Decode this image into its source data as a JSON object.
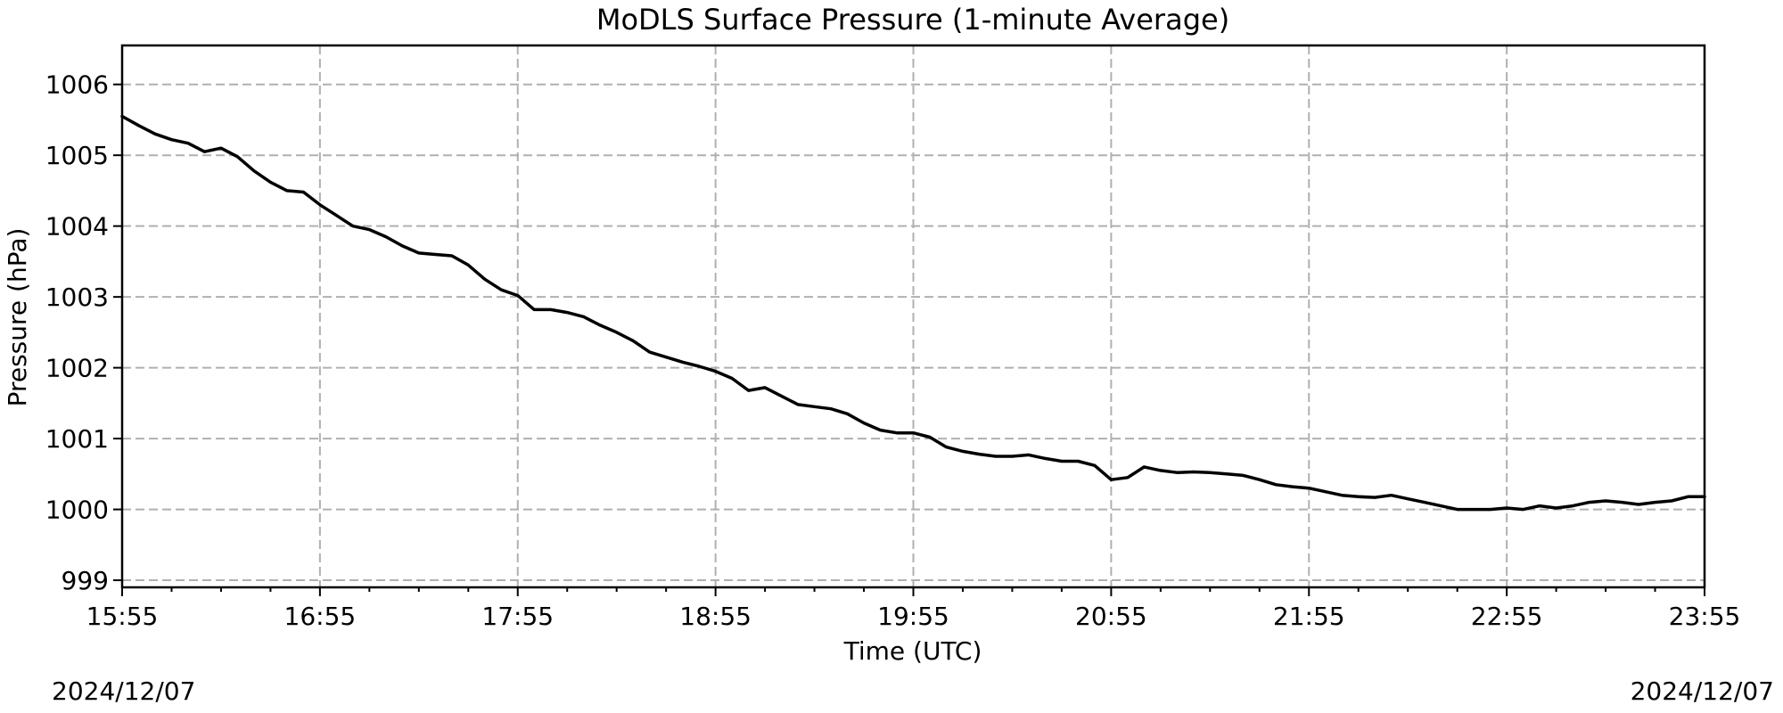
{
  "chart_data": {
    "type": "line",
    "title": "MoDLS Surface Pressure (1-minute Average)",
    "xlabel": "Time (UTC)",
    "ylabel": "Pressure (hPa)",
    "x_start_date": "2024/12/07",
    "x_end_date": "2024/12/07",
    "xlim": [
      "15:55",
      "23:55"
    ],
    "ylim": [
      998.9,
      1006.55
    ],
    "x_ticks": [
      "15:55",
      "16:55",
      "17:55",
      "18:55",
      "19:55",
      "20:55",
      "21:55",
      "22:55",
      "23:55"
    ],
    "y_ticks": [
      999,
      1000,
      1001,
      1002,
      1003,
      1004,
      1005,
      1006
    ],
    "grid": true,
    "line_color": "#000000",
    "series": [
      {
        "x": [
          "15:55",
          "16:00",
          "16:05",
          "16:10",
          "16:15",
          "16:20",
          "16:25",
          "16:30",
          "16:35",
          "16:40",
          "16:45",
          "16:50",
          "16:55",
          "17:00",
          "17:05",
          "17:10",
          "17:15",
          "17:20",
          "17:25",
          "17:30",
          "17:35",
          "17:40",
          "17:45",
          "17:50",
          "17:55",
          "18:00",
          "18:05",
          "18:10",
          "18:15",
          "18:20",
          "18:25",
          "18:30",
          "18:35",
          "18:40",
          "18:45",
          "18:50",
          "18:55",
          "19:00",
          "19:05",
          "19:10",
          "19:15",
          "19:20",
          "19:25",
          "19:30",
          "19:35",
          "19:40",
          "19:45",
          "19:50",
          "19:55",
          "20:00",
          "20:05",
          "20:10",
          "20:15",
          "20:20",
          "20:25",
          "20:30",
          "20:35",
          "20:40",
          "20:45",
          "20:50",
          "20:55",
          "21:00",
          "21:05",
          "21:10",
          "21:15",
          "21:20",
          "21:25",
          "21:30",
          "21:35",
          "21:40",
          "21:45",
          "21:50",
          "21:55",
          "22:00",
          "22:05",
          "22:10",
          "22:15",
          "22:20",
          "22:25",
          "22:30",
          "22:35",
          "22:40",
          "22:45",
          "22:50",
          "22:55",
          "23:00",
          "23:05",
          "23:10",
          "23:15",
          "23:20",
          "23:25",
          "23:30",
          "23:35",
          "23:40",
          "23:45",
          "23:50",
          "23:55"
        ],
        "y": [
          1005.55,
          1005.42,
          1005.3,
          1005.22,
          1005.17,
          1005.05,
          1005.1,
          1004.98,
          1004.78,
          1004.62,
          1004.5,
          1004.48,
          1004.3,
          1004.15,
          1004.0,
          1003.95,
          1003.85,
          1003.72,
          1003.62,
          1003.6,
          1003.58,
          1003.45,
          1003.25,
          1003.1,
          1003.02,
          1002.82,
          1002.82,
          1002.78,
          1002.72,
          1002.6,
          1002.5,
          1002.38,
          1002.22,
          1002.15,
          1002.08,
          1002.02,
          1001.95,
          1001.85,
          1001.68,
          1001.72,
          1001.6,
          1001.48,
          1001.45,
          1001.42,
          1001.35,
          1001.22,
          1001.12,
          1001.08,
          1001.08,
          1001.02,
          1000.88,
          1000.82,
          1000.78,
          1000.75,
          1000.75,
          1000.77,
          1000.72,
          1000.68,
          1000.68,
          1000.62,
          1000.42,
          1000.45,
          1000.6,
          1000.55,
          1000.52,
          1000.53,
          1000.52,
          1000.5,
          1000.48,
          1000.42,
          1000.35,
          1000.32,
          1000.3,
          1000.25,
          1000.2,
          1000.18,
          1000.17,
          1000.2,
          1000.15,
          1000.1,
          1000.05,
          1000.0,
          1000.0,
          1000.0,
          1000.02,
          1000.0,
          1000.05,
          1000.02,
          1000.05,
          1000.1,
          1000.12,
          1000.1,
          1000.07,
          1000.1,
          1000.12,
          1000.18,
          1000.18
        ]
      }
    ]
  }
}
